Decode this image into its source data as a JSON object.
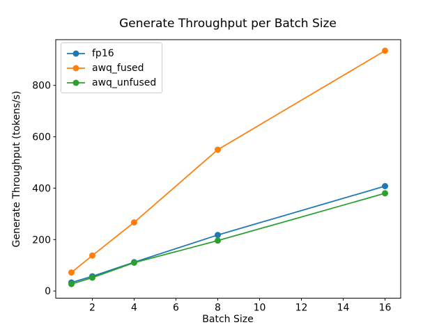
{
  "chart_data": {
    "type": "line",
    "title": "Generate Throughput per Batch Size",
    "xlabel": "Batch Size",
    "ylabel": "Generate Throughput (tokens/s)",
    "x": [
      1,
      2,
      4,
      8,
      16
    ],
    "series": [
      {
        "name": "fp16",
        "color": "#1f77b4",
        "values": [
          33,
          57,
          112,
          218,
          408
        ]
      },
      {
        "name": "awq_fused",
        "color": "#ff7f0e",
        "values": [
          72,
          138,
          267,
          550,
          935
        ]
      },
      {
        "name": "awq_unfused",
        "color": "#2ca02c",
        "values": [
          27,
          52,
          110,
          196,
          380
        ]
      }
    ],
    "xticks": [
      2,
      4,
      6,
      8,
      10,
      12,
      14,
      16
    ],
    "yticks": [
      0,
      200,
      400,
      600,
      800
    ],
    "xlim": [
      0.25,
      16.75
    ],
    "ylim": [
      -28,
      978
    ],
    "grid": false,
    "marker": "o",
    "legend_position": "upper left",
    "line_color_hex": {
      "fp16": "#1f77b4",
      "awq_fused": "#ff7f0e",
      "awq_unfused": "#2ca02c"
    },
    "axes_color": "#000000",
    "background_color": "#ffffff"
  }
}
